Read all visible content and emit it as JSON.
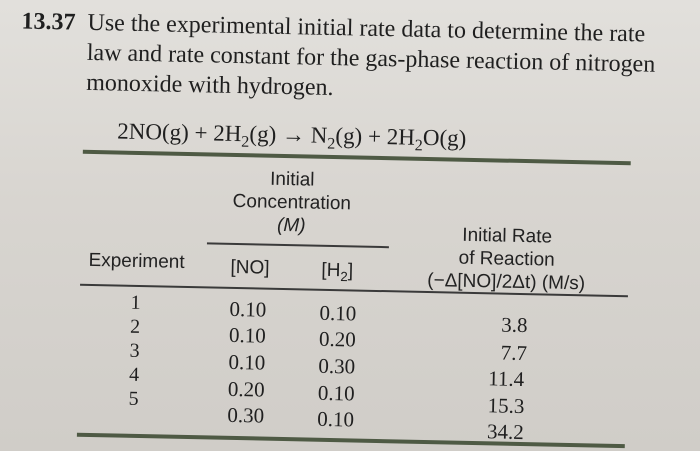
{
  "problem": {
    "number": "13.37",
    "text": "Use the experimental initial rate data to determine the rate law and rate constant for the gas-phase reaction of nitrogen monoxide with hydrogen."
  },
  "equation": {
    "reactant_no": "2NO(g)",
    "plus1": "+",
    "reactant_h2_a": "2H",
    "reactant_h2_sub": "2",
    "reactant_h2_b": "(g)",
    "arrow": "→",
    "product_n2_a": "N",
    "product_n2_sub": "2",
    "product_n2_b": "(g)",
    "plus2": "+",
    "product_h2o_a": "2H",
    "product_h2o_sub": "2",
    "product_h2o_b": "O(g)"
  },
  "table": {
    "header_initial_conc_1": "Initial",
    "header_initial_conc_2": "Concentration",
    "header_initial_conc_3": "(M)",
    "header_experiment": "Experiment",
    "header_no": "[NO]",
    "header_h2_a": "[H",
    "header_h2_sub": "2",
    "header_h2_b": "]",
    "header_rate_1": "Initial Rate",
    "header_rate_2": "of Reaction",
    "header_rate_3": "(−Δ[NO]/2Δt) (M/s)",
    "rows": [
      {
        "experiment": "1",
        "no": "0.10",
        "h2": "0.10",
        "rate": "3.8"
      },
      {
        "experiment": "2",
        "no": "0.10",
        "h2": "0.20",
        "rate": "7.7"
      },
      {
        "experiment": "3",
        "no": "0.10",
        "h2": "0.30",
        "rate": "11.4"
      },
      {
        "experiment": "4",
        "no": "0.20",
        "h2": "0.10",
        "rate": "15.3"
      },
      {
        "experiment": "5",
        "no": "0.30",
        "h2": "0.10",
        "rate": "34.2"
      }
    ]
  }
}
